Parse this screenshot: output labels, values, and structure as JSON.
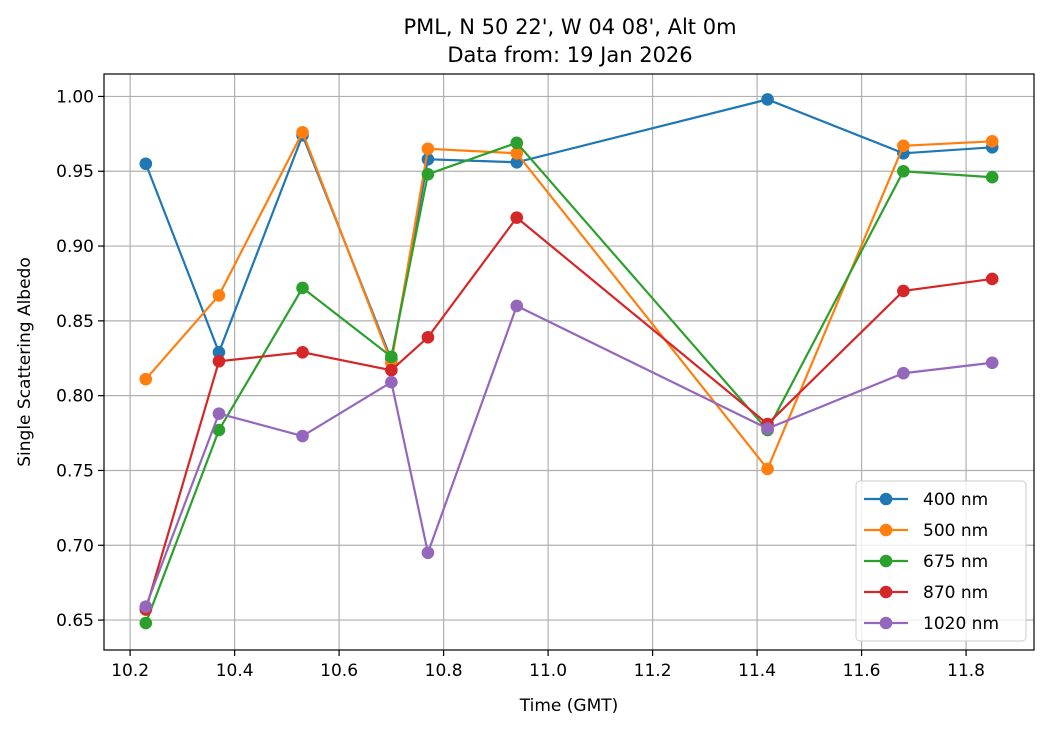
{
  "chart_data": {
    "type": "line",
    "title": "PML, N 50 22', W 04 08', Alt 0m",
    "subtitle": "Data from: 19 Jan 2026",
    "xlabel": "Time (GMT)",
    "ylabel": "Single Scattering Albedo",
    "xlim": [
      10.15,
      11.93
    ],
    "ylim": [
      0.63,
      1.015
    ],
    "xticks": [
      10.2,
      10.4,
      10.6,
      10.8,
      11.0,
      11.2,
      11.4,
      11.6,
      11.8
    ],
    "xtick_labels": [
      "10.2",
      "10.4",
      "10.6",
      "10.8",
      "11.0",
      "11.2",
      "11.4",
      "11.6",
      "11.8"
    ],
    "yticks": [
      0.65,
      0.7,
      0.75,
      0.8,
      0.85,
      0.9,
      0.95,
      1.0
    ],
    "ytick_labels": [
      "0.65",
      "0.70",
      "0.75",
      "0.80",
      "0.85",
      "0.90",
      "0.95",
      "1.00"
    ],
    "grid": true,
    "legend_position": "lower-right",
    "x": [
      10.23,
      10.37,
      10.53,
      10.7,
      10.77,
      10.94,
      11.42,
      11.68,
      11.85
    ],
    "series": [
      {
        "name": "400 nm",
        "color": "#1f77b4",
        "values": [
          0.955,
          0.829,
          0.974,
          0.824,
          0.958,
          0.956,
          0.998,
          0.962,
          0.966
        ]
      },
      {
        "name": "500 nm",
        "color": "#ff7f0e",
        "values": [
          0.811,
          0.867,
          0.976,
          0.822,
          0.965,
          0.962,
          0.751,
          0.967,
          0.97
        ]
      },
      {
        "name": "675 nm",
        "color": "#2ca02c",
        "values": [
          0.648,
          0.777,
          0.872,
          0.826,
          0.948,
          0.969,
          0.777,
          0.95,
          0.946
        ]
      },
      {
        "name": "870 nm",
        "color": "#d62728",
        "values": [
          0.657,
          0.823,
          0.829,
          0.817,
          0.839,
          0.919,
          0.781,
          0.87,
          0.878
        ]
      },
      {
        "name": "1020 nm",
        "color": "#9467bd",
        "values": [
          0.659,
          0.788,
          0.773,
          0.809,
          0.695,
          0.86,
          0.778,
          0.815,
          0.822
        ]
      }
    ]
  }
}
